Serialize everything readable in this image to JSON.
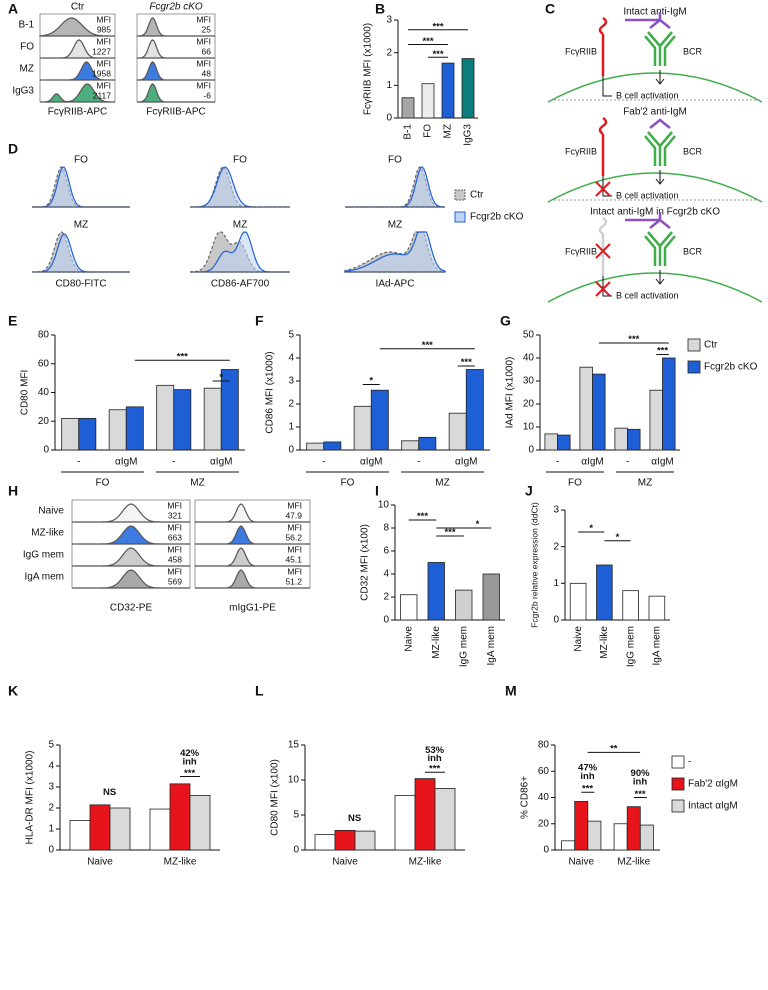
{
  "panel_letters": [
    "A",
    "B",
    "C",
    "D",
    "E",
    "F",
    "G",
    "H",
    "I",
    "J",
    "K",
    "L",
    "M"
  ],
  "mfi_label": "MFI",
  "panel_a": {
    "columns": [
      "Ctr",
      "Fcgr2b cKO"
    ],
    "rows": [
      "B-1",
      "FO",
      "MZ",
      "IgG3"
    ],
    "mfi": [
      [
        985,
        25
      ],
      [
        1227,
        66
      ],
      [
        1958,
        48
      ],
      [
        2117,
        -6
      ]
    ],
    "x_labels": [
      "FcγRIIB-APC",
      "FcγRIIB-APC"
    ]
  },
  "panel_c": {
    "panels": [
      {
        "title": "Intact anti-IgM",
        "receptor": "FcγRIIB",
        "bcr": "BCR",
        "outcome": "B cell activation"
      },
      {
        "title": "Fab'2 anti-IgM",
        "receptor": "FcγRIIB",
        "bcr": "BCR",
        "outcome": "B cell activation"
      },
      {
        "title": "Intact anti-IgM in Fcgr2b cKO",
        "receptor": "FcγRIIB",
        "bcr": "BCR",
        "outcome": "B cell activation"
      }
    ]
  },
  "panel_d": {
    "titles": [
      [
        "FO",
        "FO",
        "FO"
      ],
      [
        "MZ",
        "MZ",
        "MZ"
      ]
    ],
    "x_labels": [
      "CD80-FITC",
      "CD86-AF700",
      "IAd-APC"
    ],
    "legend": [
      "Ctr",
      "Fcgr2b cKO"
    ]
  },
  "panel_h": {
    "rows": [
      "Naive",
      "MZ-like",
      "IgG mem",
      "IgA mem"
    ],
    "mfi": [
      [
        321,
        47.9
      ],
      [
        663,
        56.2
      ],
      [
        458,
        45.1
      ],
      [
        569,
        51.2
      ]
    ],
    "x_labels": [
      "CD32-PE",
      "mIgG1-PE"
    ]
  },
  "chart_data": [
    {
      "type": "bar",
      "y_label": "FcγRIIB MFI (x1000)",
      "categories": [
        "B-1",
        "FO",
        "MZ",
        "IgG3"
      ],
      "values": [
        0.62,
        1.05,
        1.68,
        1.82
      ],
      "colors": [
        "#a6a6a6",
        "#ececec",
        "#1f5fd6",
        "#0f7c7c"
      ],
      "ylim": [
        0,
        3
      ],
      "yticks": [
        0,
        1,
        2,
        3
      ],
      "annotations": [
        "***",
        "***",
        "***"
      ]
    },
    {
      "type": "bar",
      "y_label": "CD80 MFI",
      "categories": [
        "-",
        "αIgM",
        "-",
        "αIgM"
      ],
      "groups": [
        "FO",
        "MZ"
      ],
      "series": [
        {
          "color": "#d9d9d9",
          "values": [
            22,
            28,
            45,
            43
          ]
        },
        {
          "color": "#1f5fd6",
          "values": [
            22,
            30,
            42,
            56
          ]
        }
      ],
      "ylim": [
        0,
        80
      ],
      "yticks": [
        0,
        20,
        40,
        60,
        80
      ],
      "annotations": [
        "***",
        "*"
      ]
    },
    {
      "type": "bar",
      "y_label": "CD86 MFI (x1000)",
      "categories": [
        "-",
        "αIgM",
        "-",
        "αIgM"
      ],
      "groups": [
        "FO",
        "MZ"
      ],
      "series": [
        {
          "color": "#d9d9d9",
          "values": [
            0.3,
            1.9,
            0.4,
            1.6
          ]
        },
        {
          "color": "#1f5fd6",
          "values": [
            0.35,
            2.6,
            0.55,
            3.5
          ]
        }
      ],
      "ylim": [
        0,
        5
      ],
      "yticks": [
        0,
        1,
        2,
        3,
        4,
        5
      ],
      "annotations": [
        "***",
        "*",
        "***"
      ]
    },
    {
      "type": "bar",
      "y_label": "IAd MFI (x1000)",
      "categories": [
        "-",
        "αIgM",
        "-",
        "αIgM"
      ],
      "groups": [
        "FO",
        "MZ"
      ],
      "series": [
        {
          "name": "Ctr",
          "color": "#d9d9d9",
          "values": [
            7,
            36,
            9.5,
            26
          ]
        },
        {
          "name": "Fcgr2b cKO",
          "color": "#1f5fd6",
          "values": [
            6.5,
            33,
            9,
            40
          ]
        }
      ],
      "ylim": [
        0,
        50
      ],
      "yticks": [
        0,
        10,
        20,
        30,
        40,
        50
      ],
      "annotations": [
        "***",
        "***"
      ],
      "legend": "right"
    },
    {
      "type": "bar",
      "y_label": "CD32 MFI (x100)",
      "categories": [
        "Naive",
        "MZ-like",
        "IgG mem",
        "IgA mem"
      ],
      "values": [
        2.2,
        5.0,
        2.6,
        4.0
      ],
      "colors": [
        "#ffffff",
        "#1f5fd6",
        "#cfcfcf",
        "#999999"
      ],
      "ylim": [
        0,
        10
      ],
      "yticks": [
        0,
        2,
        4,
        6,
        8,
        10
      ],
      "annotations": [
        "***",
        "***",
        "*"
      ]
    },
    {
      "type": "bar",
      "y_label": "Fcgr2b relative expression (ddCt)",
      "categories": [
        "Naive",
        "MZ-like",
        "IgG mem",
        "IgA mem"
      ],
      "values": [
        1.0,
        1.5,
        0.8,
        0.65
      ],
      "colors": [
        "#ffffff",
        "#1f5fd6",
        "#ffffff",
        "#ffffff"
      ],
      "ylim": [
        0,
        3
      ],
      "yticks": [
        0,
        1,
        2,
        3
      ],
      "annotations": [
        "*",
        "*"
      ]
    },
    {
      "type": "bar",
      "y_label": "HLA-DR MFI (x1000)",
      "categories": [
        "Naive",
        "MZ-like"
      ],
      "series": [
        {
          "color": "#ffffff",
          "values": [
            1.4,
            1.95
          ]
        },
        {
          "color": "#e8141b",
          "values": [
            2.15,
            3.15
          ]
        },
        {
          "color": "#d9d9d9",
          "values": [
            2.0,
            2.6
          ]
        }
      ],
      "ylim": [
        0,
        5
      ],
      "yticks": [
        0,
        1,
        2,
        3,
        4,
        5
      ],
      "annotations": [
        "NS",
        "42%",
        "inh",
        "***"
      ]
    },
    {
      "type": "bar",
      "y_label": "CD80 MFI (x100)",
      "categories": [
        "Naive",
        "MZ-like"
      ],
      "series": [
        {
          "color": "#ffffff",
          "values": [
            2.2,
            7.8
          ]
        },
        {
          "color": "#e8141b",
          "values": [
            2.8,
            10.2
          ]
        },
        {
          "color": "#d9d9d9",
          "values": [
            2.7,
            8.8
          ]
        }
      ],
      "ylim": [
        0,
        15
      ],
      "yticks": [
        0,
        5,
        10,
        15
      ],
      "annotations": [
        "NS",
        "53%",
        "inh",
        "***"
      ]
    },
    {
      "type": "bar",
      "y_label": "% CD86+",
      "categories": [
        "Naive",
        "MZ-like"
      ],
      "series": [
        {
          "name": "-",
          "color": "#ffffff",
          "values": [
            7,
            20
          ]
        },
        {
          "name": "Fab'2 αIgM",
          "color": "#e8141b",
          "values": [
            37,
            33
          ]
        },
        {
          "name": "Intact αIgM",
          "color": "#d9d9d9",
          "values": [
            22,
            19
          ]
        }
      ],
      "ylim": [
        0,
        80
      ],
      "yticks": [
        0,
        20,
        40,
        60,
        80
      ],
      "annotations": [
        "47%",
        "inh",
        "***",
        "90%",
        "inh",
        "***",
        "**"
      ],
      "legend": "right"
    }
  ]
}
